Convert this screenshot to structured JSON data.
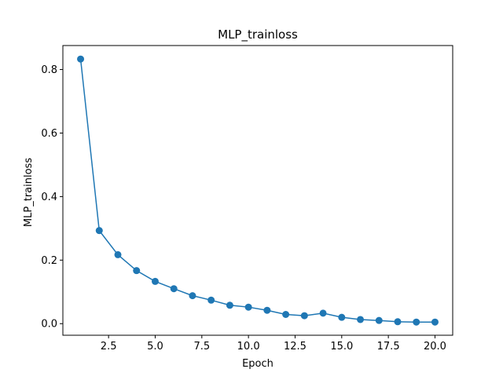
{
  "chart_data": {
    "type": "line",
    "title": "MLP_trainloss",
    "xlabel": "Epoch",
    "ylabel": "MLP_trainloss",
    "xlim": [
      0.05,
      20.95
    ],
    "ylim": [
      -0.0365,
      0.8755
    ],
    "xticks": [
      2.5,
      5.0,
      7.5,
      10.0,
      12.5,
      15.0,
      17.5,
      20.0
    ],
    "xtick_labels": [
      "2.5",
      "5.0",
      "7.5",
      "10.0",
      "12.5",
      "15.0",
      "17.5",
      "20.0"
    ],
    "yticks": [
      0.0,
      0.2,
      0.4,
      0.6,
      0.8
    ],
    "ytick_labels": [
      "0.0",
      "0.2",
      "0.4",
      "0.6",
      "0.8"
    ],
    "grid": false,
    "legend": null,
    "series": [
      {
        "color": "#1f77b4",
        "marker": "circle",
        "x": [
          1,
          2,
          3,
          4,
          5,
          6,
          7,
          8,
          9,
          10,
          11,
          12,
          13,
          14,
          15,
          16,
          17,
          18,
          19,
          20
        ],
        "y": [
          0.833,
          0.293,
          0.217,
          0.167,
          0.133,
          0.11,
          0.088,
          0.074,
          0.058,
          0.052,
          0.042,
          0.029,
          0.025,
          0.033,
          0.02,
          0.013,
          0.01,
          0.006,
          0.005,
          0.005
        ]
      }
    ]
  }
}
